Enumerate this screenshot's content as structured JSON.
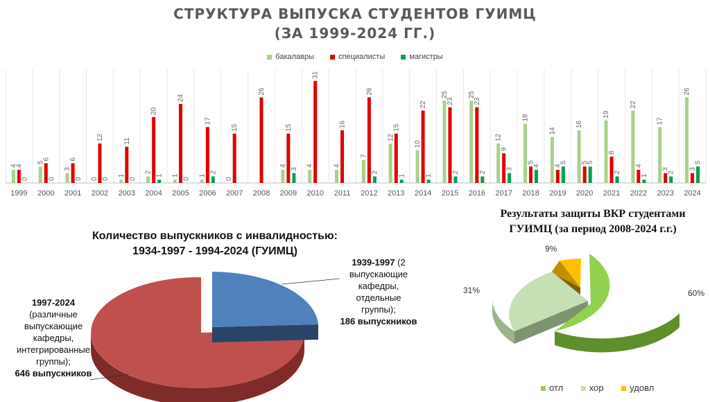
{
  "page": {
    "title_line1": "СТРУКТУРА ВЫПУСКА СТУДЕНТОВ ГУИМЦ",
    "title_line2": "(ЗА 1999-2024 ГГ.)"
  },
  "chart_data": [
    {
      "type": "bar",
      "categories": [
        "1999",
        "2000",
        "2001",
        "2002",
        "2003",
        "2004",
        "2005",
        "2006",
        "2007",
        "2008",
        "2009",
        "2010",
        "2011",
        "2012",
        "2013",
        "2014",
        "2015",
        "2016",
        "2017",
        "2018",
        "2019",
        "2020",
        "2021",
        "2022",
        "2023",
        "2024"
      ],
      "series": [
        {
          "name": "бакалавры",
          "color": "#a9d18e",
          "values": [
            4,
            5,
            3,
            0,
            1,
            2,
            1,
            1,
            0,
            null,
            4,
            4,
            4,
            7,
            12,
            10,
            25,
            25,
            12,
            18,
            14,
            16,
            19,
            22,
            17,
            26
          ]
        },
        {
          "name": "специалисты",
          "color": "#e00000",
          "values": [
            4,
            6,
            6,
            12,
            11,
            20,
            24,
            17,
            15,
            26,
            15,
            31,
            16,
            26,
            15,
            22,
            23,
            23,
            9,
            5,
            4,
            5,
            8,
            4,
            3,
            3
          ]
        },
        {
          "name": "магистры",
          "color": "#00a050",
          "values": [
            0,
            0,
            0,
            0,
            0,
            1,
            0,
            2,
            null,
            null,
            3,
            null,
            null,
            2,
            1,
            1,
            2,
            2,
            3,
            4,
            5,
            5,
            2,
            1,
            2,
            5
          ]
        }
      ],
      "legend": "top",
      "grid": false
    },
    {
      "type": "pie",
      "title": "Количество выпускников с инвалидностью: 1934-1997  - 1994-2024 (ГУИМЦ)",
      "title_line1": "Количество выпускников с инвалидностью:",
      "title_line2": "1934-1997  - 1994-2024 (ГУИМЦ)",
      "slices": [
        {
          "period": "1997-2024",
          "desc": [
            "(различные",
            "выпускающие",
            "кафедры,",
            "интегрированные",
            "группы);"
          ],
          "value": 646,
          "value_text": "646 выпускников",
          "color": "#c0504d"
        },
        {
          "period": "1939-1997",
          "desc_inline": "(2",
          "desc": [
            "выпускающие",
            "кафедры,",
            "отдельные",
            "группы);"
          ],
          "value": 186,
          "value_text": "186 выпускников",
          "color": "#4f81bd"
        }
      ]
    },
    {
      "type": "pie",
      "title_line1": "Результаты защиты ВКР студентами",
      "title_line2": "ГУИМЦ (за период 2008-2024 г.г.)",
      "slices": [
        {
          "name": "отл",
          "value": 60,
          "label": "60%",
          "color": "#92d050"
        },
        {
          "name": "хор",
          "value": 31,
          "label": "31%",
          "color": "#c5e0b4"
        },
        {
          "name": "удовл",
          "value": 9,
          "label": "9%",
          "color": "#ffc000"
        }
      ],
      "legend": "bottom"
    }
  ]
}
